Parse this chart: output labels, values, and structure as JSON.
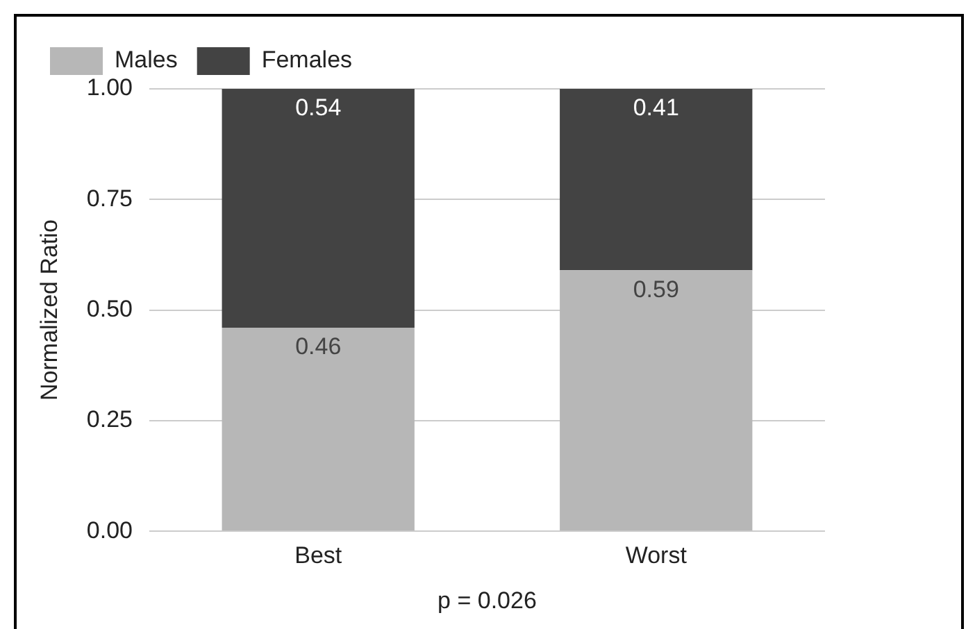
{
  "chart_data": {
    "type": "bar",
    "stacked": true,
    "categories": [
      "Best",
      "Worst"
    ],
    "series": [
      {
        "name": "Males",
        "color": "#b7b7b7",
        "values": [
          0.46,
          0.59
        ]
      },
      {
        "name": "Females",
        "color": "#434343",
        "values": [
          0.54,
          0.41
        ]
      }
    ],
    "ylabel": "Normalized Ratio",
    "ylim": [
      0,
      1
    ],
    "yticks": [
      {
        "value": 0,
        "label": "0.00"
      },
      {
        "value": 0.25,
        "label": "0.25"
      },
      {
        "value": 0.5,
        "label": "0.50"
      },
      {
        "value": 0.75,
        "label": "0.75"
      },
      {
        "value": 1,
        "label": "1.00"
      }
    ],
    "grid": "y",
    "legend": "top left",
    "data_labels": true,
    "annotations": [
      "p = 0.026"
    ]
  }
}
